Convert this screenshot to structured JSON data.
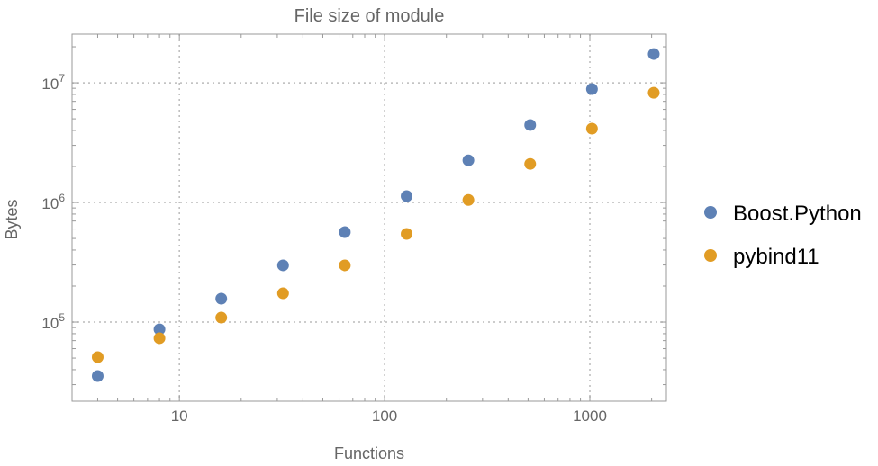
{
  "chart_data": {
    "type": "scatter",
    "title": "File size of module",
    "xlabel": "Functions",
    "ylabel": "Bytes",
    "xscale": "log",
    "yscale": "log",
    "xlim": [
      3.0,
      2360
    ],
    "ylim": [
      21800,
      25500000
    ],
    "grid": true,
    "legend_position": "right",
    "x_ticks": [
      {
        "value": 10,
        "label": "10"
      },
      {
        "value": 100,
        "label": "100"
      },
      {
        "value": 1000,
        "label": "1000"
      }
    ],
    "y_ticks": [
      {
        "value": 100000,
        "base": "10",
        "exp": "5"
      },
      {
        "value": 1000000,
        "base": "10",
        "exp": "6"
      },
      {
        "value": 10000000,
        "base": "10",
        "exp": "7"
      }
    ],
    "x": [
      4,
      8,
      16,
      32,
      64,
      128,
      256,
      512,
      1024,
      2048
    ],
    "series": [
      {
        "name": "Boost.Python",
        "color": "#5e81b5",
        "values": [
          35400,
          87000,
          157000,
          298000,
          565000,
          1130000,
          2250000,
          4440000,
          8860000,
          17400000
        ]
      },
      {
        "name": "pybind11",
        "color": "#e19c24",
        "values": [
          50900,
          73300,
          109000,
          174000,
          298000,
          546000,
          1050000,
          2100000,
          4140000,
          8260000
        ]
      }
    ]
  }
}
